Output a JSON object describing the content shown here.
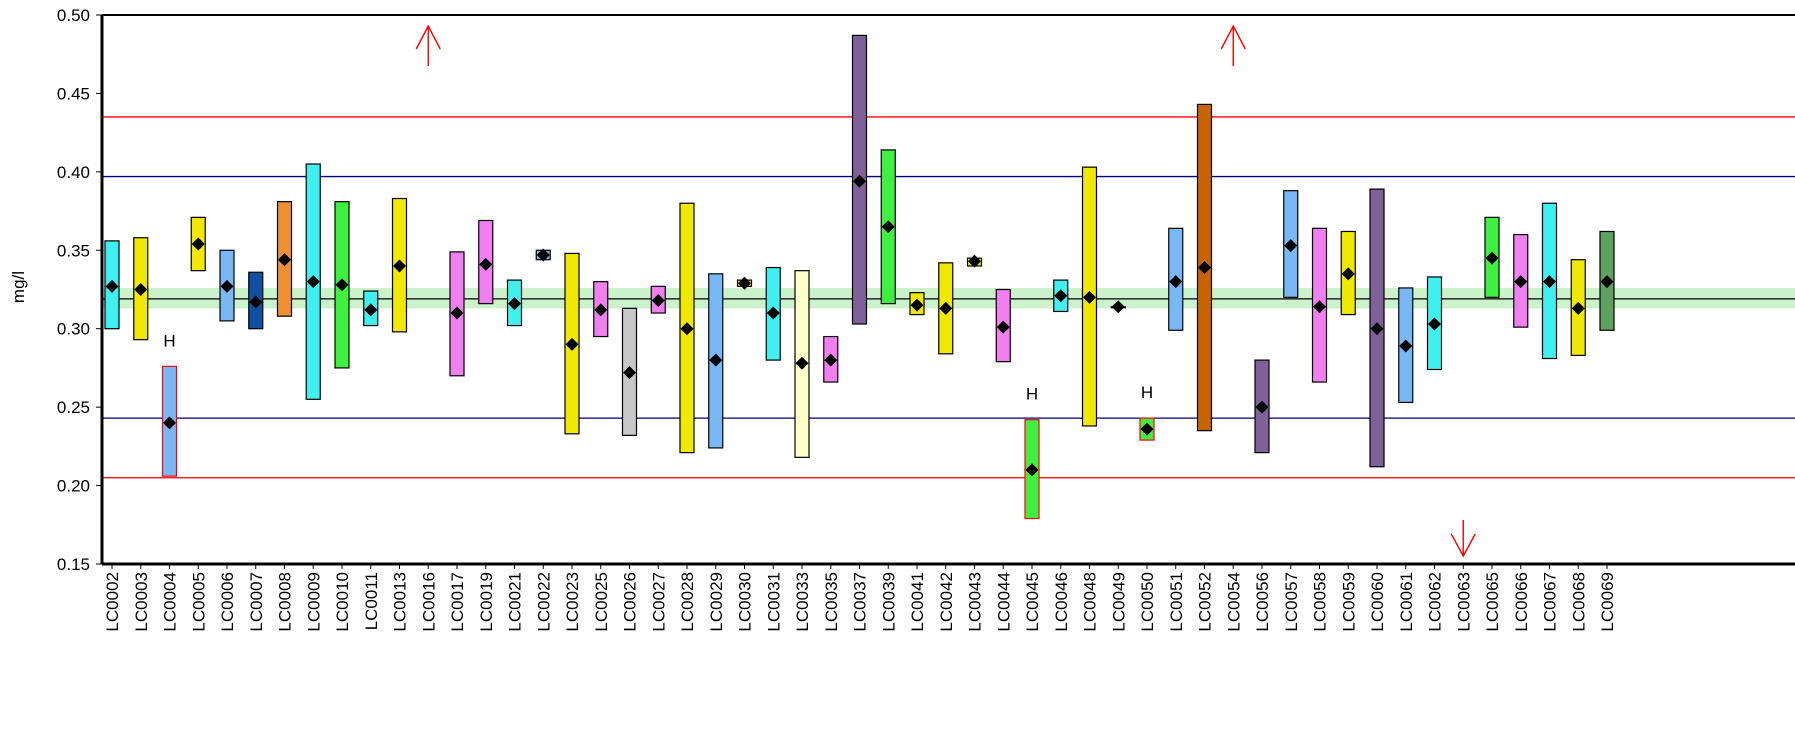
{
  "chart_data": {
    "type": "range",
    "title": "",
    "xlabel": "",
    "ylabel": "mg/l",
    "ylim": [
      0.15,
      0.5
    ],
    "yticks": [
      "0.15",
      "0.20",
      "0.25",
      "0.30",
      "0.35",
      "0.40",
      "0.45",
      "0.50"
    ],
    "reference_lines": {
      "consensus": 0.319,
      "consensus_band": [
        0.313,
        0.326
      ],
      "inner_limits": [
        0.243,
        0.397
      ],
      "outer_limits": [
        0.205,
        0.435
      ]
    },
    "colors": {
      "consensus_line": "#000000",
      "consensus_band": "#ccf2cc",
      "inner_limit": "#000080",
      "outer_limit": "#ff0000",
      "out_of_range_arrow": "#ff0000",
      "flag_outline": "#ff0000"
    },
    "labs": [
      {
        "id": "LC0002",
        "low": 0.3,
        "high": 0.356,
        "mean": 0.327,
        "color": "#40f0f0"
      },
      {
        "id": "LC0003",
        "low": 0.293,
        "high": 0.358,
        "mean": 0.325,
        "color": "#f0e800"
      },
      {
        "id": "LC0004",
        "low": 0.206,
        "high": 0.276,
        "mean": 0.24,
        "color": "#7ab8f5",
        "flag": "H",
        "flagged": true
      },
      {
        "id": "LC0005",
        "low": 0.337,
        "high": 0.371,
        "mean": 0.354,
        "color": "#f0e800"
      },
      {
        "id": "LC0006",
        "low": 0.305,
        "high": 0.35,
        "mean": 0.327,
        "color": "#7ab8f5"
      },
      {
        "id": "LC0007",
        "low": 0.3,
        "high": 0.336,
        "mean": 0.317,
        "color": "#1050a0"
      },
      {
        "id": "LC0008",
        "low": 0.308,
        "high": 0.381,
        "mean": 0.344,
        "color": "#f09030"
      },
      {
        "id": "LC0009",
        "low": 0.255,
        "high": 0.405,
        "mean": 0.33,
        "color": "#40f0f0"
      },
      {
        "id": "LC0010",
        "low": 0.275,
        "high": 0.381,
        "mean": 0.328,
        "color": "#40f040"
      },
      {
        "id": "LC0011",
        "low": 0.302,
        "high": 0.324,
        "mean": 0.312,
        "color": "#40f0f0"
      },
      {
        "id": "LC0013",
        "low": 0.298,
        "high": 0.383,
        "mean": 0.34,
        "color": "#f0e800"
      },
      {
        "id": "LC0016",
        "arrow": "up"
      },
      {
        "id": "LC0017",
        "low": 0.27,
        "high": 0.349,
        "mean": 0.31,
        "color": "#f080f0"
      },
      {
        "id": "LC0019",
        "low": 0.316,
        "high": 0.369,
        "mean": 0.341,
        "color": "#f080f0"
      },
      {
        "id": "LC0021",
        "low": 0.302,
        "high": 0.331,
        "mean": 0.316,
        "color": "#40f0f0"
      },
      {
        "id": "LC0022",
        "low": 0.344,
        "high": 0.35,
        "mean": 0.347,
        "color": "#7ab8f5"
      },
      {
        "id": "LC0023",
        "low": 0.233,
        "high": 0.348,
        "mean": 0.29,
        "color": "#f0e800"
      },
      {
        "id": "LC0025",
        "low": 0.295,
        "high": 0.33,
        "mean": 0.312,
        "color": "#f080f0"
      },
      {
        "id": "LC0026",
        "low": 0.232,
        "high": 0.313,
        "mean": 0.272,
        "color": "#c8c8c8"
      },
      {
        "id": "LC0027",
        "low": 0.31,
        "high": 0.327,
        "mean": 0.318,
        "color": "#f080f0"
      },
      {
        "id": "LC0028",
        "low": 0.221,
        "high": 0.38,
        "mean": 0.3,
        "color": "#f0e800"
      },
      {
        "id": "LC0029",
        "low": 0.224,
        "high": 0.335,
        "mean": 0.28,
        "color": "#7ab8f5"
      },
      {
        "id": "LC0030",
        "low": 0.327,
        "high": 0.331,
        "mean": 0.329,
        "color": "#f0e800"
      },
      {
        "id": "LC0031",
        "low": 0.28,
        "high": 0.339,
        "mean": 0.31,
        "color": "#40f0f0"
      },
      {
        "id": "LC0033",
        "low": 0.218,
        "high": 0.337,
        "mean": 0.278,
        "color": "#ffffc8"
      },
      {
        "id": "LC0035",
        "low": 0.266,
        "high": 0.295,
        "mean": 0.28,
        "color": "#f080f0"
      },
      {
        "id": "LC0037",
        "low": 0.303,
        "high": 0.487,
        "mean": 0.394,
        "color": "#806098"
      },
      {
        "id": "LC0039",
        "low": 0.316,
        "high": 0.414,
        "mean": 0.365,
        "color": "#40f040"
      },
      {
        "id": "LC0041",
        "low": 0.309,
        "high": 0.323,
        "mean": 0.315,
        "color": "#f0e800"
      },
      {
        "id": "LC0042",
        "low": 0.284,
        "high": 0.342,
        "mean": 0.313,
        "color": "#f0e800"
      },
      {
        "id": "LC0043",
        "low": 0.34,
        "high": 0.345,
        "mean": 0.343,
        "color": "#f0e800"
      },
      {
        "id": "LC0044",
        "low": 0.279,
        "high": 0.325,
        "mean": 0.301,
        "color": "#f080f0"
      },
      {
        "id": "LC0045",
        "low": 0.179,
        "high": 0.242,
        "mean": 0.21,
        "color": "#40f040",
        "flag": "H",
        "flagged": true
      },
      {
        "id": "LC0046",
        "low": 0.311,
        "high": 0.331,
        "mean": 0.321,
        "color": "#40f0f0"
      },
      {
        "id": "LC0048",
        "low": 0.238,
        "high": 0.403,
        "mean": 0.32,
        "color": "#f0e800"
      },
      {
        "id": "LC0049",
        "low": 0.314,
        "high": 0.314,
        "mean": 0.314,
        "color": "#f0e800"
      },
      {
        "id": "LC0050",
        "low": 0.229,
        "high": 0.243,
        "mean": 0.236,
        "color": "#40f040",
        "flag": "H",
        "flagged": true
      },
      {
        "id": "LC0051",
        "low": 0.299,
        "high": 0.364,
        "mean": 0.33,
        "color": "#7ab8f5"
      },
      {
        "id": "LC0052",
        "low": 0.235,
        "high": 0.443,
        "mean": 0.339,
        "color": "#c86400"
      },
      {
        "id": "LC0054",
        "arrow": "up"
      },
      {
        "id": "LC0056",
        "low": 0.221,
        "high": 0.28,
        "mean": 0.25,
        "color": "#806098"
      },
      {
        "id": "LC0057",
        "low": 0.32,
        "high": 0.388,
        "mean": 0.353,
        "color": "#7ab8f5"
      },
      {
        "id": "LC0058",
        "low": 0.266,
        "high": 0.364,
        "mean": 0.314,
        "color": "#f080f0"
      },
      {
        "id": "LC0059",
        "low": 0.309,
        "high": 0.362,
        "mean": 0.335,
        "color": "#f0e800"
      },
      {
        "id": "LC0060",
        "low": 0.212,
        "high": 0.389,
        "mean": 0.3,
        "color": "#806098"
      },
      {
        "id": "LC0061",
        "low": 0.253,
        "high": 0.326,
        "mean": 0.289,
        "color": "#7ab8f5"
      },
      {
        "id": "LC0062",
        "low": 0.274,
        "high": 0.333,
        "mean": 0.303,
        "color": "#40f0f0"
      },
      {
        "id": "LC0063",
        "arrow": "down"
      },
      {
        "id": "LC0065",
        "low": 0.32,
        "high": 0.371,
        "mean": 0.345,
        "color": "#40f040"
      },
      {
        "id": "LC0066",
        "low": 0.301,
        "high": 0.36,
        "mean": 0.33,
        "color": "#f080f0"
      },
      {
        "id": "LC0067",
        "low": 0.281,
        "high": 0.38,
        "mean": 0.33,
        "color": "#40f0f0"
      },
      {
        "id": "LC0068",
        "low": 0.283,
        "high": 0.344,
        "mean": 0.313,
        "color": "#f0e800"
      },
      {
        "id": "LC0069",
        "low": 0.299,
        "high": 0.362,
        "mean": 0.33,
        "color": "#60a060"
      }
    ]
  }
}
